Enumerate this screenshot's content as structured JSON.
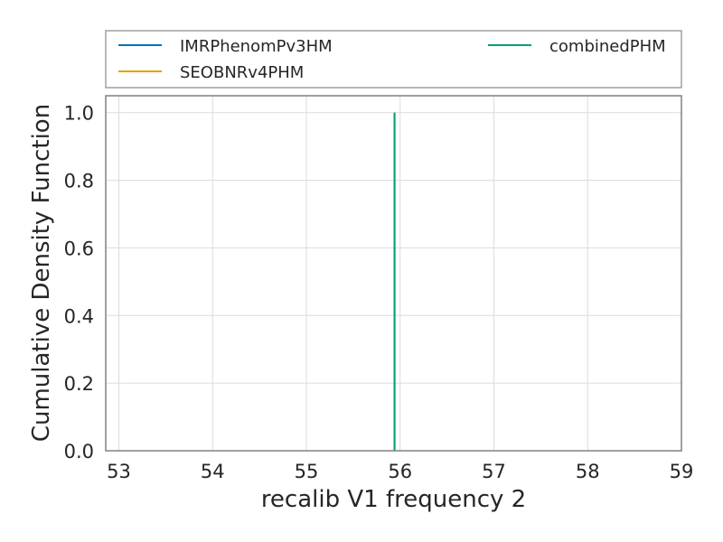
{
  "chart_data": {
    "type": "line",
    "title": "",
    "xlabel": "recalib V1 frequency 2",
    "ylabel": "Cumulative Density Function",
    "xlim": [
      52.86,
      59.0
    ],
    "ylim": [
      0.0,
      1.05
    ],
    "x_ticks": [
      "53",
      "54",
      "55",
      "56",
      "57",
      "58",
      "59"
    ],
    "y_ticks": [
      "0.0",
      "0.2",
      "0.4",
      "0.6",
      "0.8",
      "1.0"
    ],
    "grid": true,
    "legend_position": "top, above plot, 2 columns",
    "series": [
      {
        "name": "IMRPhenomPv3HM",
        "color": "#0072b2",
        "x": [
          55.94,
          55.94
        ],
        "y": [
          0.0,
          1.0
        ]
      },
      {
        "name": "SEOBNRv4PHM",
        "color": "#e69f00",
        "x": [
          55.94,
          55.94
        ],
        "y": [
          0.0,
          1.0
        ]
      },
      {
        "name": "combinedPHM",
        "color": "#009e73",
        "x": [
          55.94,
          55.94
        ],
        "y": [
          0.0,
          1.0
        ]
      }
    ]
  }
}
